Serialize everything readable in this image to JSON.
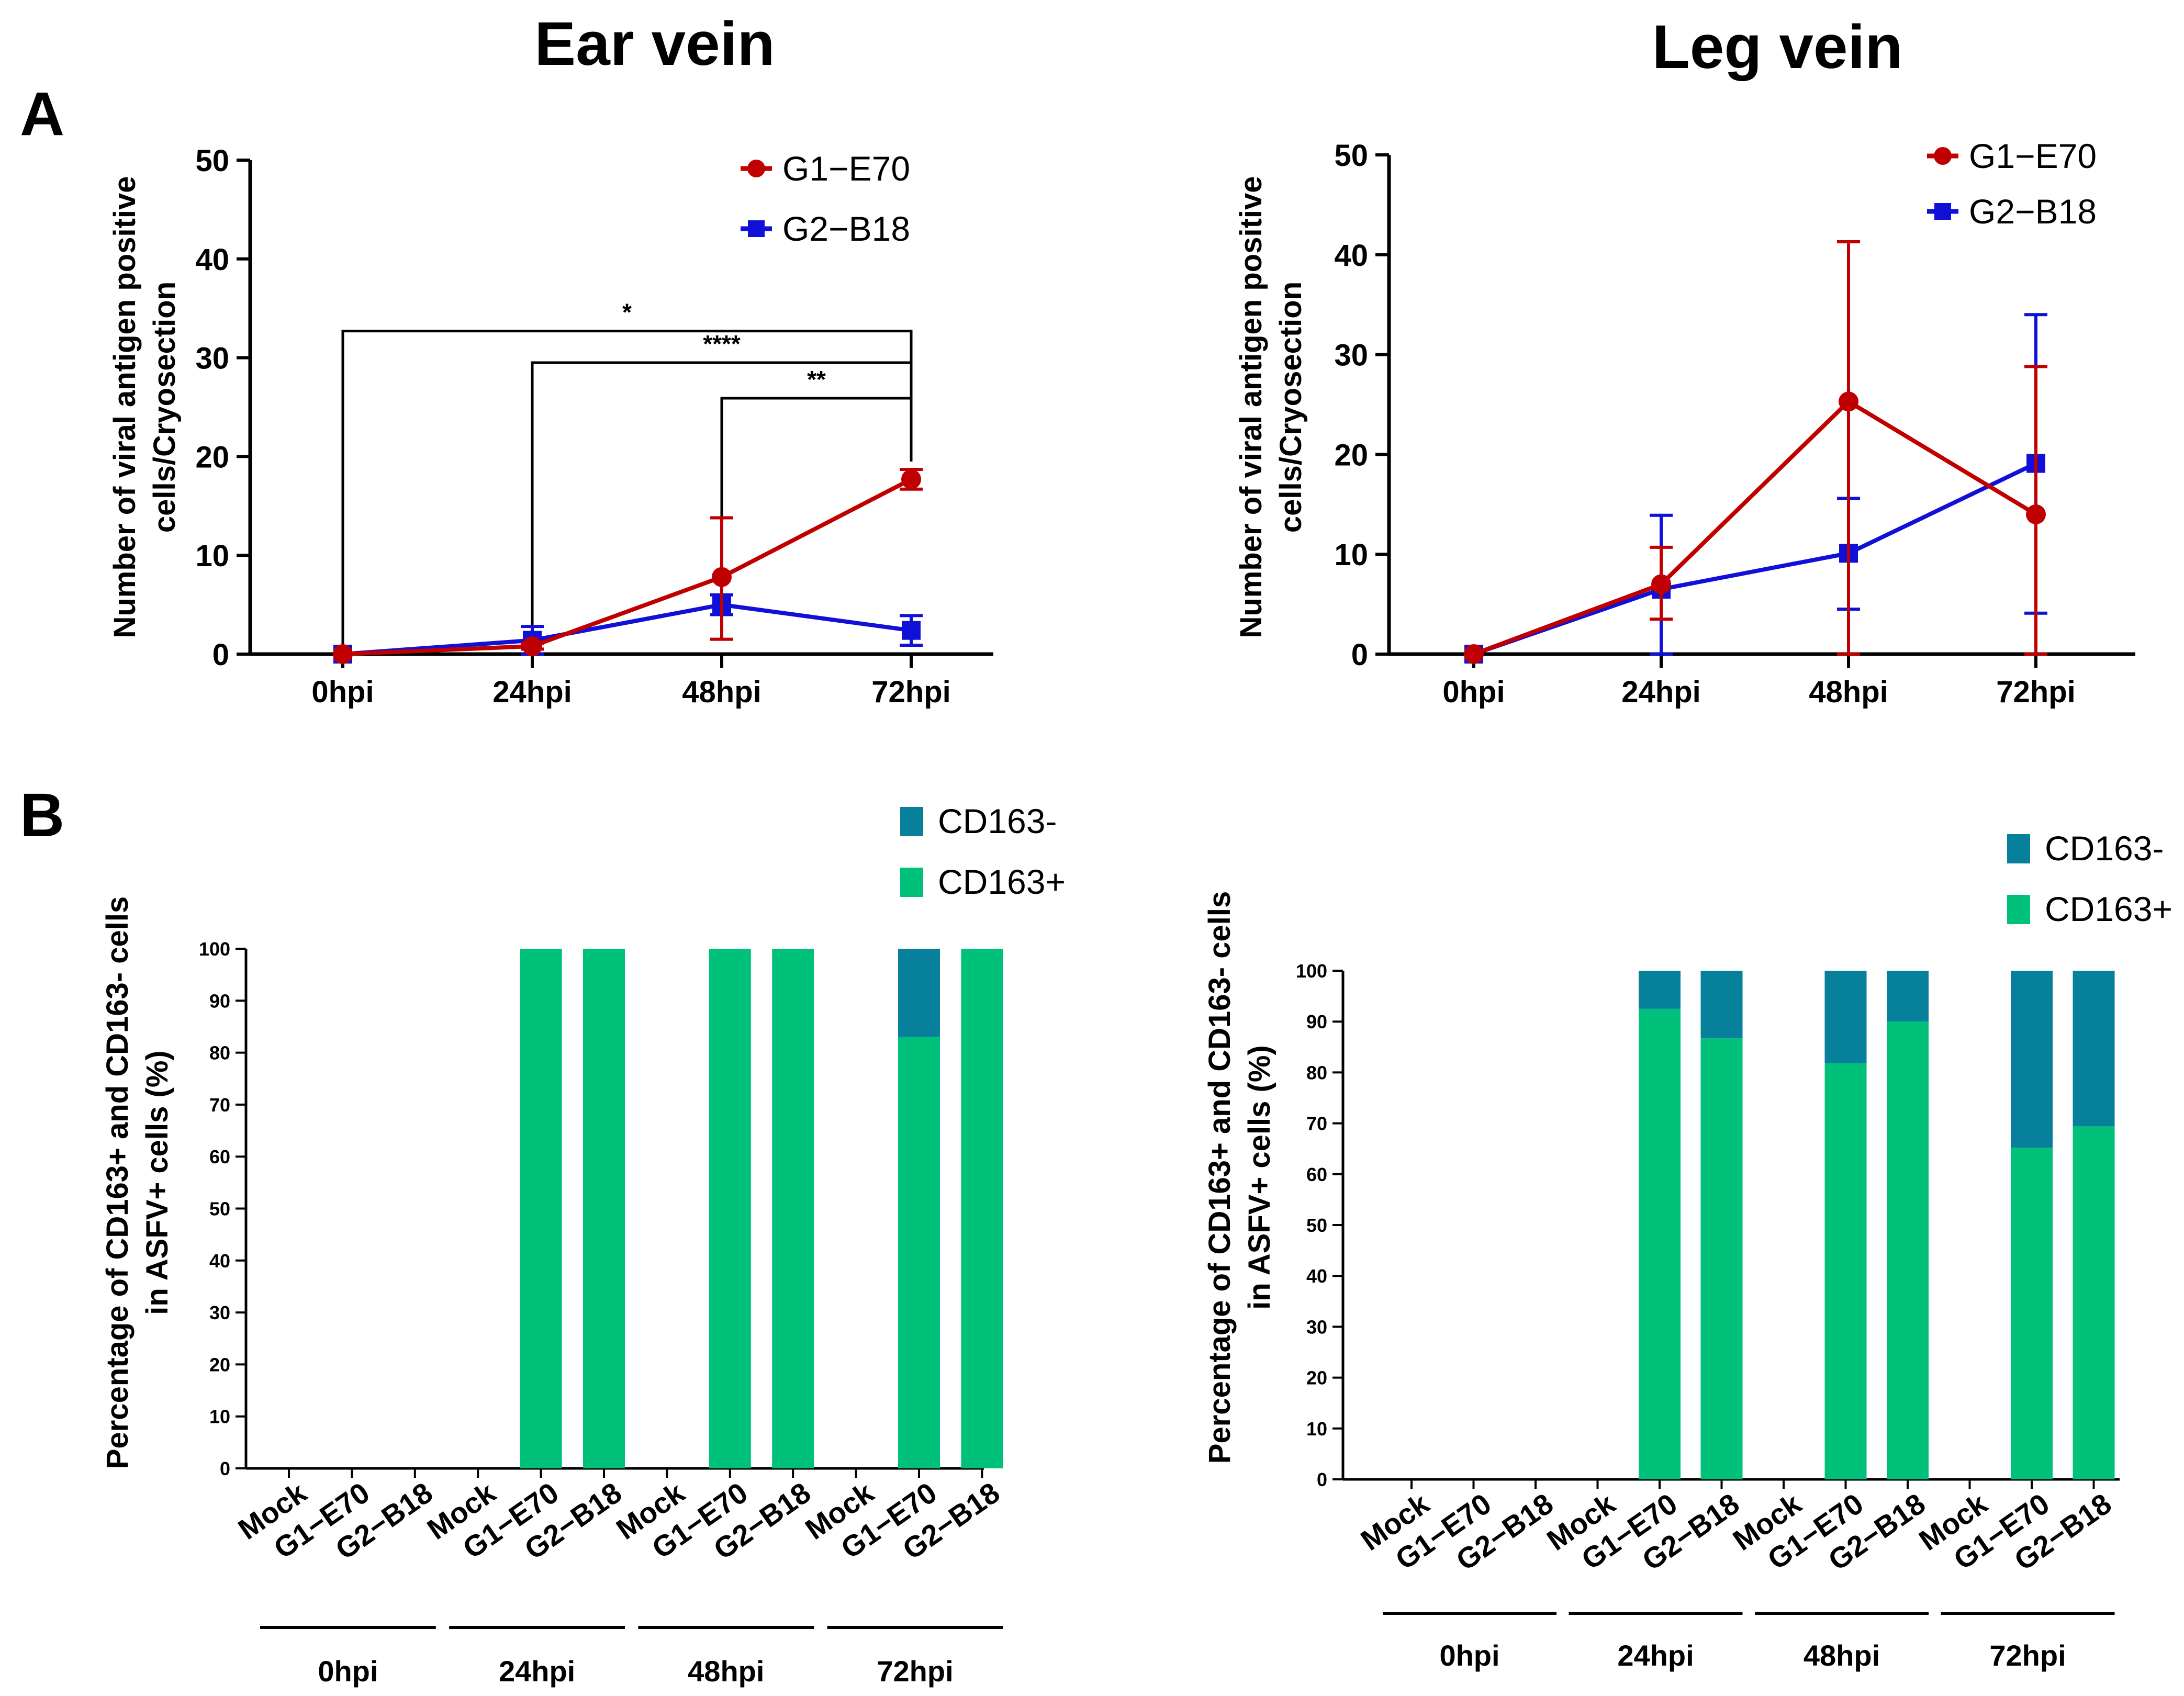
{
  "figure": {
    "panel_labels": [
      "A",
      "B"
    ]
  },
  "colors": {
    "g1": "#c00000",
    "g2": "#1010d8",
    "cd163_neg": "#07819b",
    "cd163_pos": "#00c17a",
    "axis": "#000000"
  },
  "chart_data": [
    {
      "id": "A-ear",
      "type": "line",
      "title": "Ear vein",
      "ylabel": [
        "Number of viral antigen positive",
        "cells/Cryosection"
      ],
      "xlabel": "",
      "categories": [
        "0hpi",
        "24hpi",
        "48hpi",
        "72hpi"
      ],
      "ylim": [
        0,
        50
      ],
      "yticks": [
        0,
        10,
        20,
        30,
        40,
        50
      ],
      "grid": false,
      "legend_position": "top-right",
      "series": [
        {
          "name": "G1−E70",
          "marker": "circle",
          "values": [
            0,
            0.8,
            7.8,
            17.7
          ],
          "err_low": [
            0,
            0.3,
            6.3,
            1.0
          ],
          "err_high": [
            0,
            0.3,
            6.0,
            1.0
          ]
        },
        {
          "name": "G2−B18",
          "marker": "square",
          "values": [
            0,
            1.4,
            5.0,
            2.4
          ],
          "err_low": [
            0,
            1.4,
            1.0,
            1.5
          ],
          "err_high": [
            0,
            1.4,
            1.0,
            1.5
          ]
        }
      ],
      "significance": [
        {
          "from": 0,
          "to": 3,
          "label": "*"
        },
        {
          "from": 1,
          "to": 3,
          "label": "****"
        },
        {
          "from": 2,
          "to": 3,
          "label": "**"
        }
      ]
    },
    {
      "id": "A-leg",
      "type": "line",
      "title": "Leg vein",
      "ylabel": [
        "Number of viral antigen positive",
        "cells/Cryosection"
      ],
      "xlabel": "",
      "categories": [
        "0hpi",
        "24hpi",
        "48hpi",
        "72hpi"
      ],
      "ylim": [
        0,
        50
      ],
      "yticks": [
        0,
        10,
        20,
        30,
        40,
        50
      ],
      "grid": false,
      "legend_position": "top-right",
      "series": [
        {
          "name": "G1−E70",
          "marker": "circle",
          "values": [
            0,
            7.0,
            25.3,
            14.0
          ],
          "err_low": [
            0,
            3.5,
            25.3,
            14.0
          ],
          "err_high": [
            0,
            3.7,
            16.0,
            14.8
          ]
        },
        {
          "name": "G2−B18",
          "marker": "square",
          "values": [
            0,
            6.5,
            10.1,
            19.1
          ],
          "err_low": [
            0,
            6.5,
            5.6,
            15.0
          ],
          "err_high": [
            0,
            7.4,
            5.5,
            14.9
          ]
        }
      ],
      "significance": []
    },
    {
      "id": "B-ear",
      "type": "bar",
      "stacked": true,
      "title": "",
      "ylabel": [
        "Percentage of CD163+ and CD163- cells",
        "in ASFV+ cells (%)"
      ],
      "categories": [
        "Mock",
        "G1−E70",
        "G2−B18",
        "Mock",
        "G1−E70",
        "G2−B18",
        "Mock",
        "G1−E70",
        "G2−B18",
        "Mock",
        "G1−E70",
        "G2−B18"
      ],
      "groups": [
        {
          "label": "0hpi",
          "start": 0,
          "end": 2
        },
        {
          "label": "24hpi",
          "start": 3,
          "end": 5
        },
        {
          "label": "48hpi",
          "start": 6,
          "end": 8
        },
        {
          "label": "72hpi",
          "start": 9,
          "end": 11
        }
      ],
      "ylim": [
        0,
        100
      ],
      "yticks": [
        0,
        10,
        20,
        30,
        40,
        50,
        60,
        70,
        80,
        90,
        100
      ],
      "legend_position": "top-right",
      "series": [
        {
          "name": "CD163+",
          "values": [
            0,
            0,
            0,
            0,
            100,
            100,
            0,
            100,
            100,
            0,
            83,
            100
          ]
        },
        {
          "name": "CD163-",
          "values": [
            0,
            0,
            0,
            0,
            0,
            0,
            0,
            0,
            0,
            0,
            17,
            0
          ]
        }
      ],
      "legend_order": [
        "CD163-",
        "CD163+"
      ]
    },
    {
      "id": "B-leg",
      "type": "bar",
      "stacked": true,
      "title": "",
      "ylabel": [
        "Percentage of CD163+ and CD163- cells",
        "in ASFV+ cells (%)"
      ],
      "categories": [
        "Mock",
        "G1−E70",
        "G2−B18",
        "Mock",
        "G1−E70",
        "G2−B18",
        "Mock",
        "G1−E70",
        "G2−B18",
        "Mock",
        "G1−E70",
        "G2−B18"
      ],
      "groups": [
        {
          "label": "0hpi",
          "start": 0,
          "end": 2
        },
        {
          "label": "24hpi",
          "start": 3,
          "end": 5
        },
        {
          "label": "48hpi",
          "start": 6,
          "end": 8
        },
        {
          "label": "72hpi",
          "start": 9,
          "end": 11
        }
      ],
      "ylim": [
        0,
        100
      ],
      "yticks": [
        0,
        10,
        20,
        30,
        40,
        50,
        60,
        70,
        80,
        90,
        100
      ],
      "legend_position": "top-right",
      "series": [
        {
          "name": "CD163+",
          "values": [
            0,
            0,
            0,
            0,
            92.5,
            86.7,
            0,
            81.8,
            90,
            0,
            65.2,
            69.4
          ]
        },
        {
          "name": "CD163-",
          "values": [
            0,
            0,
            0,
            0,
            7.5,
            13.3,
            0,
            18.2,
            10,
            0,
            34.8,
            30.6
          ]
        }
      ],
      "legend_order": [
        "CD163-",
        "CD163+"
      ]
    }
  ]
}
